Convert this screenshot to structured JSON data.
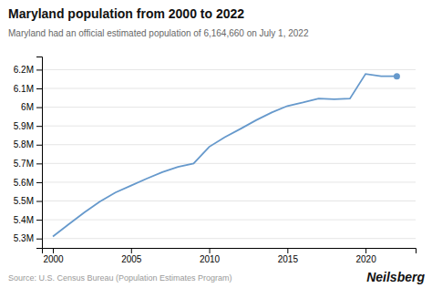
{
  "chart_data": {
    "type": "line",
    "title": "Maryland population from 2000 to 2022",
    "subtitle": "Maryland had an official estimated population of 6,164,660 on July 1, 2022",
    "annotations": [
      "Source: U.S. Census Bureau (Population Estimates Program)",
      "Neilsberg"
    ],
    "x": [
      2000,
      2001,
      2002,
      2003,
      2004,
      2005,
      2006,
      2007,
      2008,
      2009,
      2010,
      2011,
      2012,
      2013,
      2014,
      2015,
      2016,
      2017,
      2018,
      2019,
      2020,
      2021,
      2022
    ],
    "values": [
      5311034,
      5374691,
      5437890,
      5496869,
      5545399,
      5582170,
      5619289,
      5653408,
      5681170,
      5699478,
      5788645,
      5840550,
      5884563,
      5930512,
      5972056,
      6006401,
      6024752,
      6045680,
      6042718,
      6045867,
      6177224,
      6165129,
      6164660
    ],
    "color": "#6699cc",
    "xlim": [
      1999.3,
      2023.2
    ],
    "xticks": [
      2000,
      2005,
      2010,
      2015,
      2020
    ],
    "ylim": [
      5250000,
      6270000
    ],
    "yticks": [
      {
        "value": 5300000,
        "label": "5.3M"
      },
      {
        "value": 5400000,
        "label": "5.4M"
      },
      {
        "value": 5500000,
        "label": "5.5M"
      },
      {
        "value": 5600000,
        "label": "5.6M"
      },
      {
        "value": 5700000,
        "label": "5.7M"
      },
      {
        "value": 5800000,
        "label": "5.8M"
      },
      {
        "value": 5900000,
        "label": "5.9M"
      },
      {
        "value": 6000000,
        "label": "6M"
      },
      {
        "value": 6100000,
        "label": "6.1M"
      },
      {
        "value": 6200000,
        "label": "6.2M"
      }
    ],
    "grid": true
  }
}
